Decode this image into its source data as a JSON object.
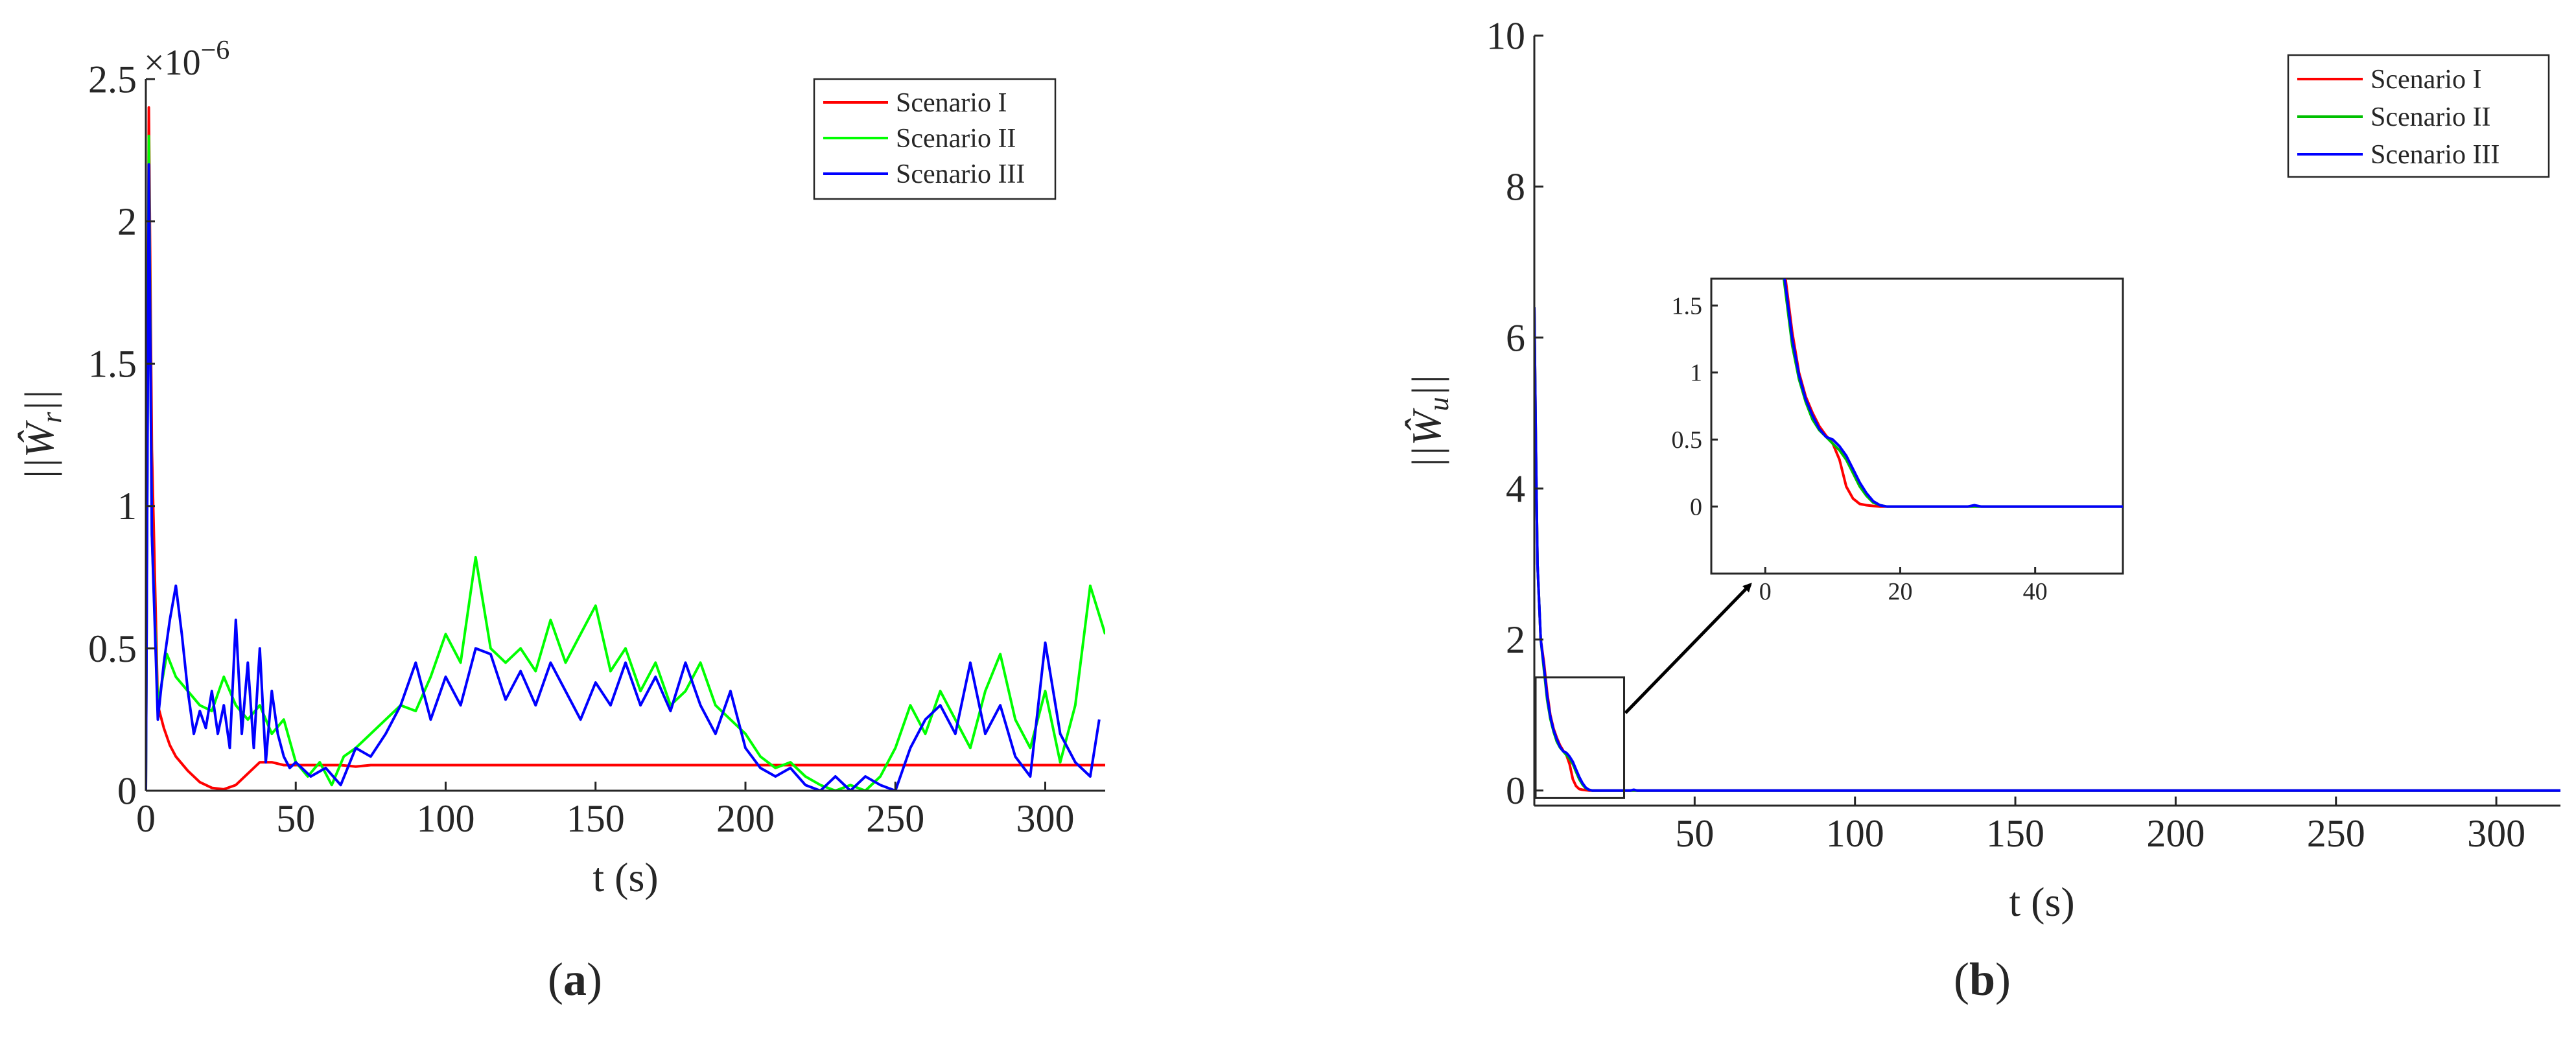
{
  "chart_data": [
    {
      "type": "line",
      "panel": "a",
      "caption_open": "(",
      "caption_letter": "a",
      "caption_close": ")",
      "xlabel": "t (s)",
      "ylabel": "||Ŵ_r||",
      "ylabel_main": "||Ŵ",
      "ylabel_sub": "r",
      "ylabel_end": "||",
      "y_scale_base": "×10",
      "y_scale_exp": "−6",
      "xlim": [
        0,
        320
      ],
      "ylim": [
        0,
        2.5
      ],
      "xticks": [
        0,
        50,
        100,
        150,
        200,
        250,
        300
      ],
      "xtick_labels": [
        "0",
        "50",
        "100",
        "150",
        "200",
        "250",
        "300"
      ],
      "yticks": [
        0,
        0.5,
        1,
        1.5,
        2,
        2.5
      ],
      "ytick_labels": [
        "0",
        "0.5",
        "1",
        "1.5",
        "2",
        "2.5"
      ],
      "legend_position": "top-right",
      "series": [
        {
          "name": "Scenario I",
          "color": "#ff0000",
          "x": [
            0,
            1,
            2,
            4,
            6,
            8,
            10,
            14,
            18,
            22,
            26,
            30,
            34,
            38,
            42,
            46,
            50,
            55,
            60,
            65,
            70,
            75,
            80,
            100,
            150,
            200,
            250,
            300,
            320
          ],
          "y": [
            0,
            2.4,
            1.2,
            0.3,
            0.22,
            0.16,
            0.12,
            0.07,
            0.03,
            0.01,
            0.005,
            0.02,
            0.06,
            0.1,
            0.1,
            0.09,
            0.09,
            0.09,
            0.09,
            0.09,
            0.085,
            0.09,
            0.09,
            0.09,
            0.09,
            0.09,
            0.09,
            0.09,
            0.09
          ]
        },
        {
          "name": "Scenario II",
          "color": "#00ff00",
          "x": [
            0,
            1,
            2,
            4,
            7,
            10,
            14,
            18,
            22,
            26,
            30,
            34,
            38,
            42,
            46,
            50,
            54,
            58,
            62,
            66,
            70,
            75,
            80,
            85,
            90,
            95,
            100,
            105,
            110,
            115,
            120,
            125,
            130,
            135,
            140,
            145,
            150,
            155,
            160,
            165,
            170,
            175,
            180,
            185,
            190,
            195,
            200,
            205,
            210,
            215,
            220,
            225,
            230,
            235,
            240,
            245,
            250,
            255,
            260,
            265,
            270,
            275,
            280,
            285,
            290,
            295,
            300,
            305,
            310,
            315,
            320
          ],
          "y": [
            0,
            2.3,
            0.9,
            0.3,
            0.48,
            0.4,
            0.35,
            0.3,
            0.28,
            0.4,
            0.3,
            0.25,
            0.3,
            0.2,
            0.25,
            0.1,
            0.05,
            0.1,
            0.02,
            0.12,
            0.15,
            0.2,
            0.25,
            0.3,
            0.28,
            0.4,
            0.55,
            0.45,
            0.82,
            0.5,
            0.45,
            0.5,
            0.42,
            0.6,
            0.45,
            0.55,
            0.65,
            0.42,
            0.5,
            0.35,
            0.45,
            0.3,
            0.35,
            0.45,
            0.3,
            0.25,
            0.2,
            0.12,
            0.08,
            0.1,
            0.05,
            0.02,
            0.0,
            0.02,
            0.0,
            0.05,
            0.15,
            0.3,
            0.2,
            0.35,
            0.25,
            0.15,
            0.35,
            0.48,
            0.25,
            0.15,
            0.35,
            0.1,
            0.3,
            0.72,
            0.55
          ]
        },
        {
          "name": "Scenario III",
          "color": "#0000ff",
          "x": [
            0,
            1,
            2,
            4,
            6,
            8,
            10,
            12,
            14,
            16,
            18,
            20,
            22,
            24,
            26,
            28,
            30,
            32,
            34,
            36,
            38,
            40,
            42,
            44,
            46,
            48,
            50,
            55,
            60,
            65,
            70,
            75,
            80,
            85,
            90,
            95,
            100,
            105,
            110,
            115,
            120,
            125,
            130,
            135,
            140,
            145,
            150,
            155,
            160,
            165,
            170,
            175,
            180,
            185,
            190,
            195,
            200,
            205,
            210,
            215,
            220,
            225,
            230,
            235,
            240,
            245,
            250,
            255,
            260,
            265,
            270,
            275,
            280,
            285,
            290,
            295,
            300,
            305,
            310,
            315,
            318
          ],
          "y": [
            0,
            2.2,
            0.9,
            0.25,
            0.45,
            0.6,
            0.72,
            0.55,
            0.35,
            0.2,
            0.28,
            0.22,
            0.35,
            0.2,
            0.3,
            0.15,
            0.6,
            0.2,
            0.45,
            0.15,
            0.5,
            0.1,
            0.35,
            0.2,
            0.12,
            0.08,
            0.1,
            0.05,
            0.08,
            0.02,
            0.15,
            0.12,
            0.2,
            0.3,
            0.45,
            0.25,
            0.4,
            0.3,
            0.5,
            0.48,
            0.32,
            0.42,
            0.3,
            0.45,
            0.35,
            0.25,
            0.38,
            0.3,
            0.45,
            0.3,
            0.4,
            0.28,
            0.45,
            0.3,
            0.2,
            0.35,
            0.15,
            0.08,
            0.05,
            0.08,
            0.02,
            0.0,
            0.05,
            0.0,
            0.05,
            0.02,
            0.0,
            0.15,
            0.25,
            0.3,
            0.2,
            0.45,
            0.2,
            0.3,
            0.12,
            0.05,
            0.52,
            0.2,
            0.1,
            0.05,
            0.25
          ]
        }
      ]
    },
    {
      "type": "line",
      "panel": "b",
      "caption_open": "(",
      "caption_letter": "b",
      "caption_close": ")",
      "xlabel": "t (s)",
      "ylabel": "||Ŵ_u||",
      "ylabel_main": "||Ŵ",
      "ylabel_sub": "u",
      "ylabel_end": "||",
      "xlim": [
        0,
        320
      ],
      "ylim": [
        -0.2,
        10
      ],
      "xticks": [
        50,
        100,
        150,
        200,
        250,
        300
      ],
      "xtick_labels": [
        "50",
        "100",
        "150",
        "200",
        "250",
        "300"
      ],
      "yticks": [
        0,
        2,
        4,
        6,
        8,
        10
      ],
      "ytick_labels": [
        "0",
        "2",
        "4",
        "6",
        "8",
        "10"
      ],
      "legend_position": "top-right",
      "zoom_region": {
        "x": [
          0,
          28
        ],
        "y": [
          -0.1,
          1.5
        ]
      },
      "series": [
        {
          "name": "Scenario I",
          "color": "#ff0000",
          "x": [
            0,
            0.5,
            1,
            2,
            3,
            4,
            5,
            6,
            7,
            8,
            9,
            10,
            11,
            12,
            13,
            14,
            15,
            16,
            17,
            18,
            20,
            25,
            30,
            40,
            60,
            100,
            200,
            320
          ],
          "y": [
            6.4,
            4.5,
            3.0,
            2.0,
            1.7,
            1.3,
            1.0,
            0.82,
            0.7,
            0.6,
            0.53,
            0.47,
            0.35,
            0.15,
            0.06,
            0.02,
            0.01,
            0.005,
            0,
            0,
            0,
            0,
            0,
            0,
            0,
            0,
            0,
            0
          ]
        },
        {
          "name": "Scenario II",
          "color": "#00c000",
          "x": [
            0,
            0.5,
            1,
            2,
            3,
            4,
            5,
            6,
            7,
            8,
            9,
            10,
            11,
            12,
            13,
            14,
            15,
            16,
            17,
            18,
            20,
            25,
            30,
            40,
            60,
            100,
            200,
            320
          ],
          "y": [
            6.4,
            4.5,
            3.0,
            2.0,
            1.6,
            1.2,
            0.95,
            0.78,
            0.65,
            0.57,
            0.52,
            0.47,
            0.42,
            0.35,
            0.25,
            0.15,
            0.08,
            0.03,
            0.01,
            0,
            0,
            0,
            0,
            0,
            0,
            0,
            0,
            0
          ]
        },
        {
          "name": "Scenario III",
          "color": "#0000ff",
          "x": [
            0,
            0.5,
            1,
            2,
            3,
            4,
            5,
            6,
            7,
            8,
            9,
            10,
            11,
            12,
            13,
            14,
            15,
            16,
            17,
            18,
            20,
            25,
            30,
            31,
            32,
            40,
            60,
            100,
            200,
            320
          ],
          "y": [
            6.4,
            4.5,
            3.0,
            2.0,
            1.65,
            1.25,
            0.98,
            0.8,
            0.68,
            0.58,
            0.52,
            0.5,
            0.45,
            0.38,
            0.28,
            0.18,
            0.1,
            0.04,
            0.01,
            0,
            0,
            0,
            0,
            0.01,
            0,
            0,
            0,
            0,
            0,
            0
          ]
        }
      ],
      "inset": {
        "xlim": [
          -8,
          53
        ],
        "ylim": [
          -0.5,
          1.7
        ],
        "xticks": [
          0,
          20,
          40
        ],
        "xtick_labels": [
          "0",
          "20",
          "40"
        ],
        "yticks": [
          0,
          0.5,
          1,
          1.5
        ],
        "ytick_labels": [
          "0",
          "0.5",
          "1",
          "1.5"
        ]
      }
    }
  ]
}
